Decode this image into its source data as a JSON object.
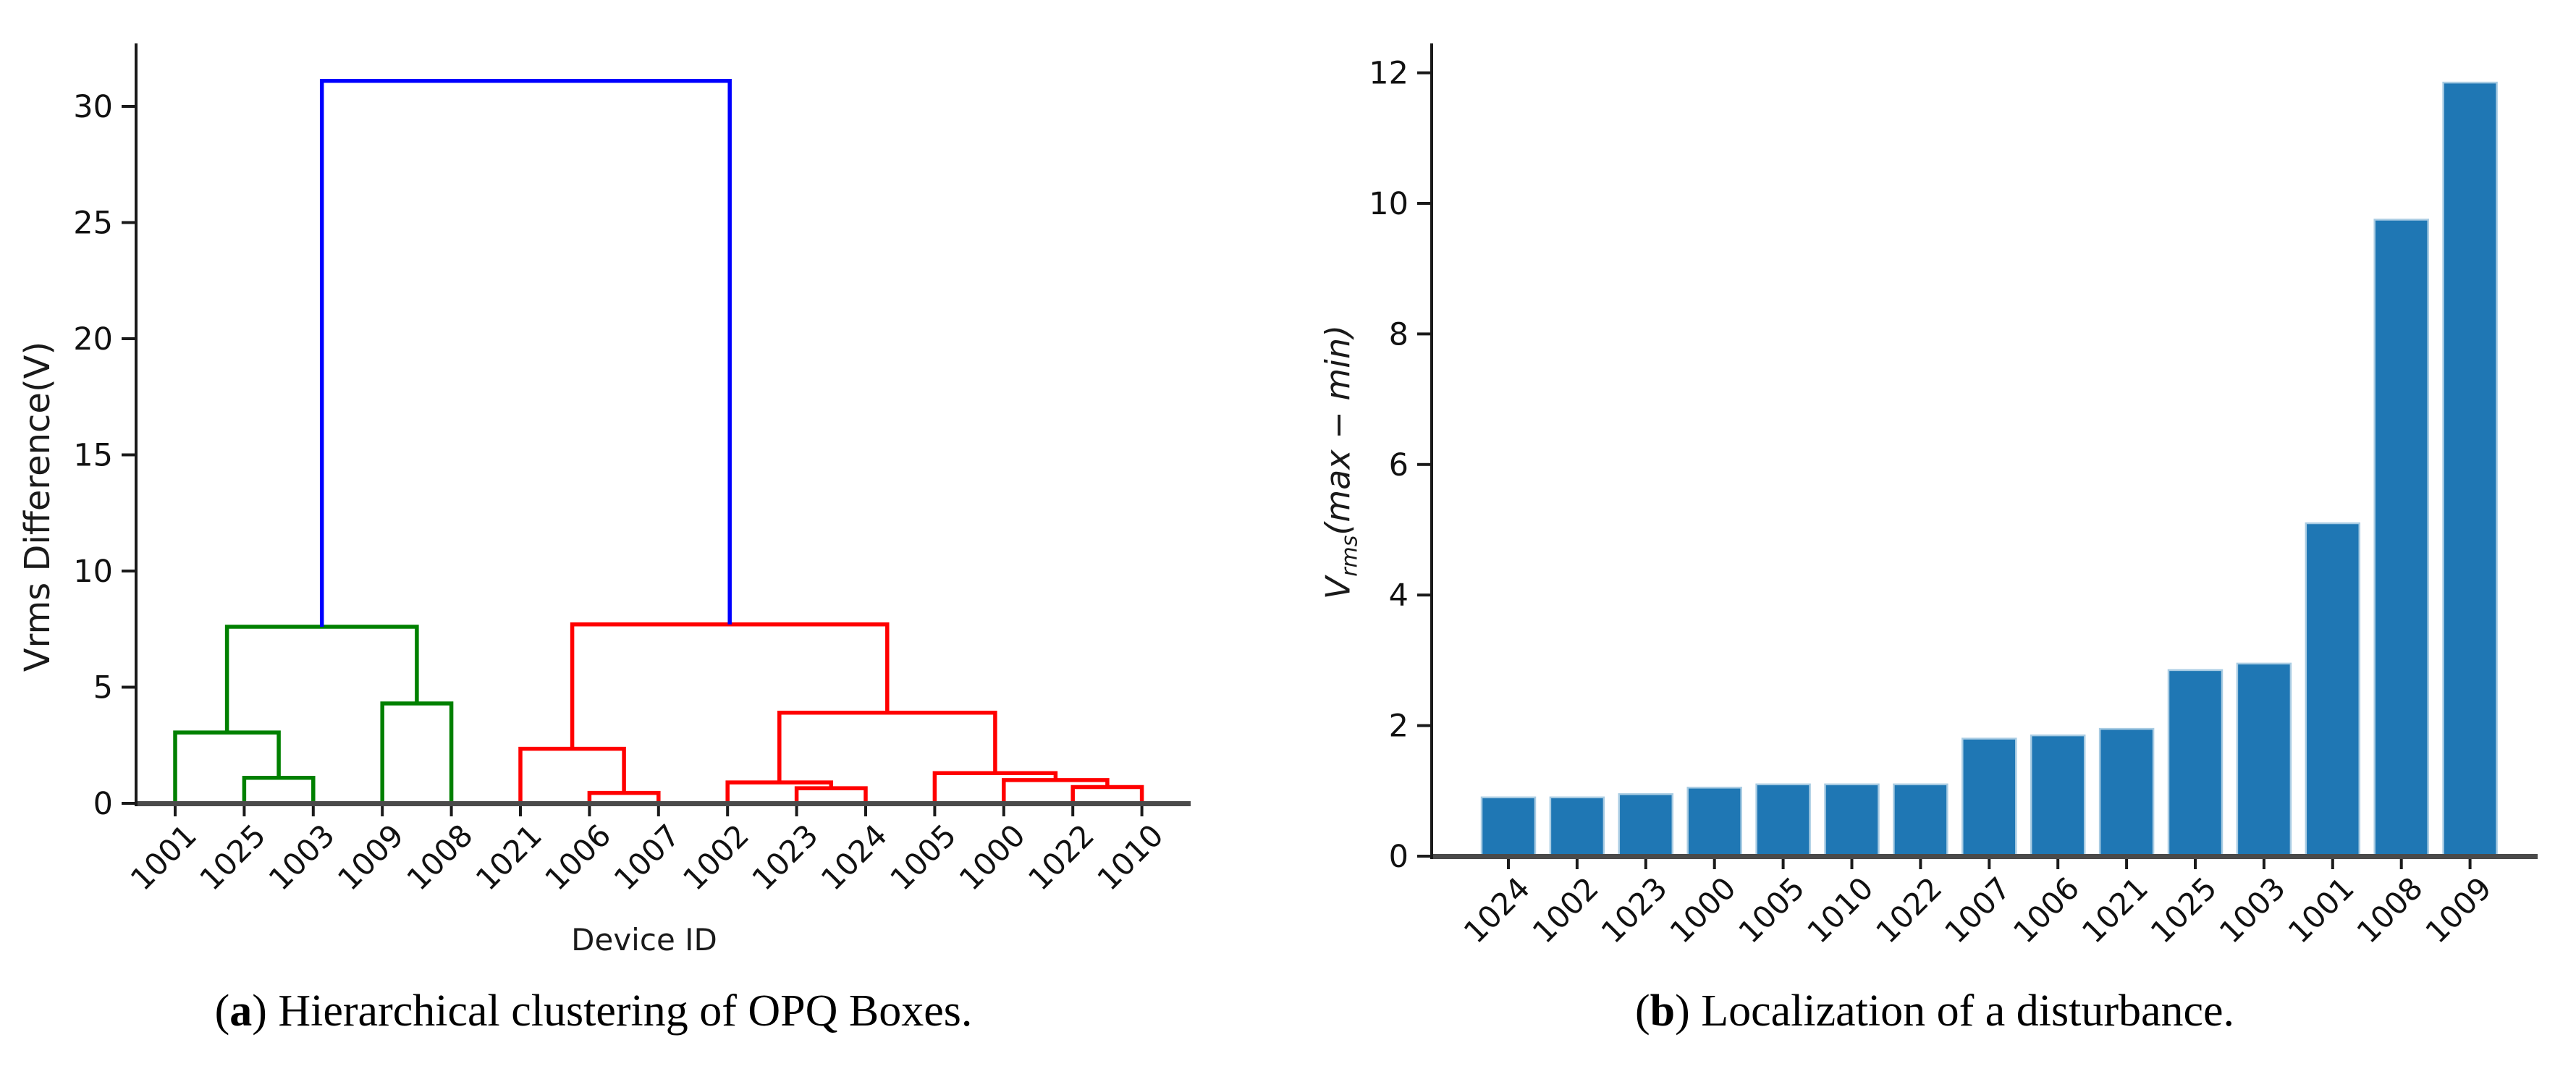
{
  "figure_a": {
    "caption": {
      "pre": "(",
      "bold": "a",
      "post": ") Hierarchical clustering of OPQ Boxes."
    }
  },
  "figure_b": {
    "caption": {
      "pre": "(",
      "bold": "b",
      "post": ") Localization of a disturbance."
    },
    "ylabel": {
      "var": "V",
      "sub": "rms",
      "rest": "(max − min)"
    }
  },
  "chart_data": [
    {
      "type": "dendrogram",
      "title": "",
      "xlabel": "Device ID",
      "ylabel": "Vrms Difference(V)",
      "ylim": [
        0,
        33
      ],
      "yticks": [
        0,
        5,
        10,
        15,
        20,
        25,
        30
      ],
      "grid": false,
      "legend": "none",
      "leaf_order": [
        "1001",
        "1025",
        "1003",
        "1009",
        "1008",
        "1021",
        "1006",
        "1007",
        "1002",
        "1023",
        "1024",
        "1005",
        "1000",
        "1022",
        "1010"
      ],
      "links": [
        {
          "id": "g1",
          "a": "1025",
          "b": "1003",
          "h": 1.1,
          "color": "green"
        },
        {
          "id": "g2",
          "a": "1001",
          "b": "g1",
          "h": 3.05,
          "color": "green"
        },
        {
          "id": "g3",
          "a": "1009",
          "b": "1008",
          "h": 4.3,
          "color": "green"
        },
        {
          "id": "g4",
          "a": "g2",
          "b": "g3",
          "h": 7.6,
          "color": "green"
        },
        {
          "id": "r1",
          "a": "1006",
          "b": "1007",
          "h": 0.45,
          "color": "red"
        },
        {
          "id": "r2",
          "a": "1021",
          "b": "r1",
          "h": 2.35,
          "color": "red"
        },
        {
          "id": "r3",
          "a": "1023",
          "b": "1024",
          "h": 0.65,
          "color": "red"
        },
        {
          "id": "r4",
          "a": "1002",
          "b": "r3",
          "h": 0.9,
          "color": "red"
        },
        {
          "id": "r5",
          "a": "1022",
          "b": "1010",
          "h": 0.7,
          "color": "red"
        },
        {
          "id": "r6",
          "a": "1000",
          "b": "r5",
          "h": 1.0,
          "color": "red"
        },
        {
          "id": "r7",
          "a": "1005",
          "b": "r6",
          "h": 1.3,
          "color": "red"
        },
        {
          "id": "r8",
          "a": "r4",
          "b": "r7",
          "h": 3.9,
          "color": "red"
        },
        {
          "id": "r9",
          "a": "r2",
          "b": "r8",
          "h": 7.7,
          "color": "red"
        },
        {
          "id": "b1",
          "a": "g4",
          "b": "r9",
          "h": 31.1,
          "color": "blue"
        }
      ],
      "colors": {
        "green": "#008000",
        "red": "#ff0000",
        "blue": "#0000ff"
      },
      "axis_color": "#1a1a1a",
      "baseline_color": "#4a4a4a"
    },
    {
      "type": "bar",
      "title": "",
      "xlabel": "",
      "ylabel": "V_rms(max − min)",
      "categories": [
        "1024",
        "1002",
        "1023",
        "1000",
        "1005",
        "1010",
        "1022",
        "1007",
        "1006",
        "1021",
        "1025",
        "1003",
        "1001",
        "1008",
        "1009"
      ],
      "values": [
        0.9,
        0.9,
        0.95,
        1.05,
        1.1,
        1.1,
        1.1,
        1.8,
        1.85,
        1.95,
        2.85,
        2.95,
        5.1,
        9.75,
        11.85
      ],
      "ylim": [
        0,
        12.6
      ],
      "yticks": [
        0,
        2,
        4,
        6,
        8,
        10,
        12
      ],
      "grid": false,
      "legend": "none",
      "bar_color": "#1f77b4",
      "bar_edge_color": "#a9cce3",
      "axis_color": "#1a1a1a",
      "baseline_color": "#4a4a4a"
    }
  ]
}
